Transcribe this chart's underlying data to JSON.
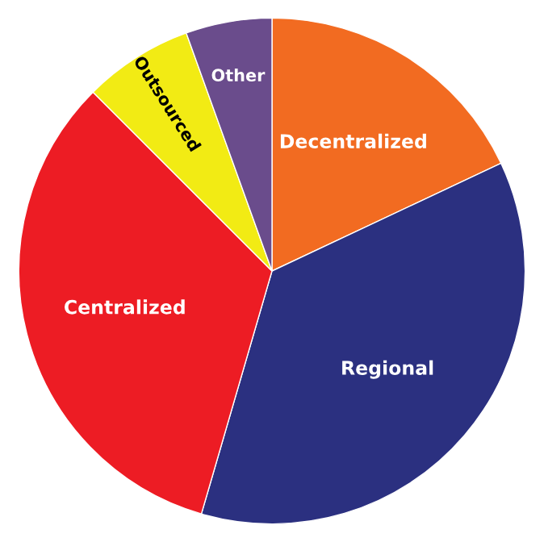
{
  "chart_data": {
    "type": "pie",
    "categories": [
      "Decentralized",
      "Regional",
      "Centralized",
      "Outsourced",
      "Other"
    ],
    "values": [
      18,
      36.5,
      33,
      7,
      5.5
    ],
    "colors": [
      "#f26b21",
      "#2b3080",
      "#ed1c24",
      "#f2eb14",
      "#6a4c8c"
    ]
  }
}
